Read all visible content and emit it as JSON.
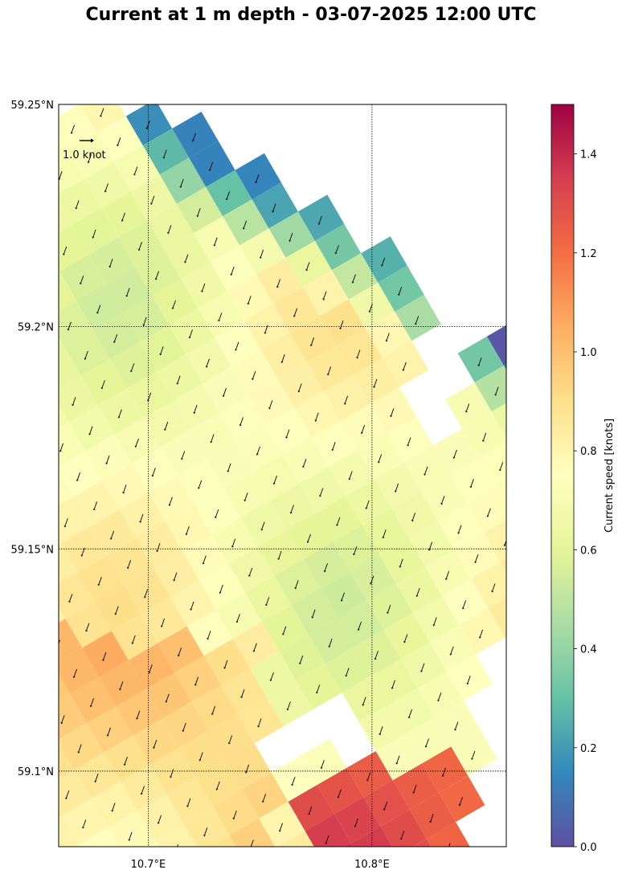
{
  "title": "Current at 1 m depth - 03-07-2025 12:00 UTC",
  "map": {
    "lat_range": [
      59.083,
      59.25
    ],
    "lon_range": [
      10.66,
      10.86
    ],
    "lat_ticks": [
      {
        "value": 59.25,
        "label": "59.25°N"
      },
      {
        "value": 59.2,
        "label": "59.2°N"
      },
      {
        "value": 59.15,
        "label": "59.15°N"
      },
      {
        "value": 59.1,
        "label": "59.1°N"
      }
    ],
    "lon_ticks": [
      {
        "value": 10.7,
        "label": "10.7°E"
      },
      {
        "value": 10.8,
        "label": "10.8°E"
      }
    ],
    "gridlines": "dotted",
    "reference_arrow_label": "1.0 knot",
    "reference_arrow_value": 1.0,
    "grid_rotation_deg": 30,
    "flow_direction": "south-southwest",
    "land_color": "#ffffff"
  },
  "colorbar": {
    "label": "Current speed [knots]",
    "range": [
      0,
      1.5
    ],
    "colormap": "Spectral_r",
    "ticks": [
      {
        "value": 0.0,
        "label": "0.0"
      },
      {
        "value": 0.2,
        "label": "0.2"
      },
      {
        "value": 0.4,
        "label": "0.4"
      },
      {
        "value": 0.6,
        "label": "0.6"
      },
      {
        "value": 0.8,
        "label": "0.8"
      },
      {
        "value": 1.0,
        "label": "1.0"
      },
      {
        "value": 1.2,
        "label": "1.2"
      },
      {
        "value": 1.4,
        "label": "1.4"
      }
    ],
    "stops": [
      "#5e4fa2",
      "#3288bd",
      "#66c2a5",
      "#abdda4",
      "#e6f598",
      "#ffffbf",
      "#fee08b",
      "#fdae61",
      "#f46d43",
      "#d53e4f",
      "#9e0142"
    ]
  }
}
